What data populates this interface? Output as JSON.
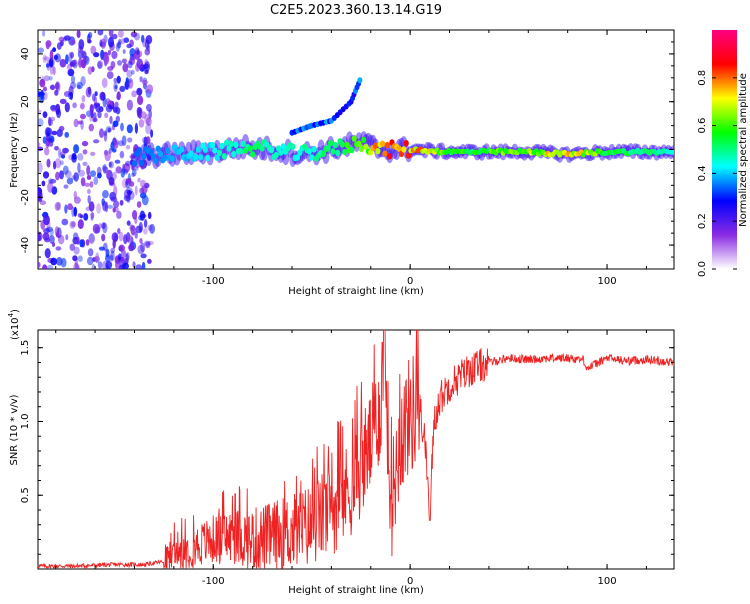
{
  "title": "C2E5.2023.360.13.14.G19",
  "chart_data": [
    {
      "type": "heatmap",
      "xlabel": "Height of straight line (km)",
      "ylabel": "Frequency (Hz)",
      "xlim": [
        -189,
        134
      ],
      "ylim": [
        -50,
        50
      ],
      "x_ticks": [
        -100,
        0,
        100
      ],
      "x_tick_labels": [
        "-100",
        "0",
        "100"
      ],
      "y_ticks": [
        -40,
        -20,
        0,
        20,
        40
      ],
      "y_tick_labels": [
        "-40",
        "-20",
        "0",
        "20",
        "40"
      ],
      "colorbar": {
        "label": "Normalized spectral amplitude",
        "range": [
          0,
          1
        ],
        "ticks": [
          0.0,
          0.2,
          0.4,
          0.6,
          0.8
        ],
        "tick_labels": [
          "0.0",
          "0.2",
          "0.4",
          "0.6",
          "0.8"
        ],
        "colors": [
          "#ffffff",
          "#8a2be2",
          "#0000ff",
          "#00ffff",
          "#00ff00",
          "#ffff00",
          "#ff0000",
          "#ff0080"
        ]
      },
      "ridge": [
        {
          "x": -140,
          "f": -3,
          "amp": 0.35
        },
        {
          "x": -120,
          "f": -2,
          "amp": 0.4
        },
        {
          "x": -100,
          "f": -1,
          "amp": 0.45
        },
        {
          "x": -85,
          "f": 1,
          "amp": 0.55
        },
        {
          "x": -70,
          "f": 0,
          "amp": 0.5
        },
        {
          "x": -55,
          "f": -2,
          "amp": 0.5
        },
        {
          "x": -40,
          "f": 0,
          "amp": 0.55
        },
        {
          "x": -25,
          "f": 3,
          "amp": 0.65
        },
        {
          "x": -15,
          "f": 0,
          "amp": 0.9
        },
        {
          "x": 0,
          "f": 0,
          "amp": 0.9
        },
        {
          "x": 20,
          "f": -1,
          "amp": 0.6
        },
        {
          "x": 40,
          "f": -1,
          "amp": 0.65
        },
        {
          "x": 60,
          "f": -1,
          "amp": 0.7
        },
        {
          "x": 80,
          "f": -2,
          "amp": 0.85
        },
        {
          "x": 100,
          "f": -1,
          "amp": 0.6
        },
        {
          "x": 120,
          "f": -1,
          "amp": 0.55
        },
        {
          "x": 134,
          "f": -1,
          "amp": 0.5
        }
      ],
      "upper_branch": [
        {
          "x": -60,
          "f": 7
        },
        {
          "x": -50,
          "f": 10
        },
        {
          "x": -40,
          "f": 12
        },
        {
          "x": -30,
          "f": 20
        },
        {
          "x": -25,
          "f": 30
        }
      ]
    },
    {
      "type": "line",
      "xlabel": "Height of straight line (km)",
      "ylabel": "SNR (10 * v/v)",
      "multiplier_label": "(x10",
      "multiplier_exp": "4",
      "xlim": [
        -189,
        134
      ],
      "ylim": [
        0,
        1.62
      ],
      "x_ticks": [
        -100,
        0,
        100
      ],
      "x_tick_labels": [
        "-100",
        "0",
        "100"
      ],
      "y_ticks": [
        0.5,
        1.0,
        1.5
      ],
      "y_tick_labels": [
        "0.5",
        "1.0",
        "1.5"
      ],
      "line_color": "#ee2222",
      "series": [
        {
          "x": [
            -189,
            -170,
            -150,
            -135,
            -125,
            -120,
            -110,
            -100,
            -90,
            -80,
            -70,
            -60,
            -50,
            -40,
            -30,
            -25,
            -20,
            -15,
            -13,
            -10,
            -5,
            0,
            5,
            8,
            10,
            12,
            15,
            20,
            30,
            40,
            50,
            60,
            70,
            80,
            88,
            90,
            100,
            110,
            120,
            134
          ],
          "y": [
            0.02,
            0.02,
            0.03,
            0.03,
            0.05,
            0.1,
            0.15,
            0.2,
            0.22,
            0.2,
            0.22,
            0.25,
            0.3,
            0.4,
            0.55,
            0.7,
            0.85,
            1.1,
            1.62,
            0.4,
            0.9,
            1.05,
            1.1,
            0.8,
            0.35,
            1.0,
            1.15,
            1.25,
            1.35,
            1.4,
            1.43,
            1.42,
            1.43,
            1.43,
            1.42,
            1.36,
            1.43,
            1.41,
            1.42,
            1.4
          ]
        }
      ]
    }
  ]
}
